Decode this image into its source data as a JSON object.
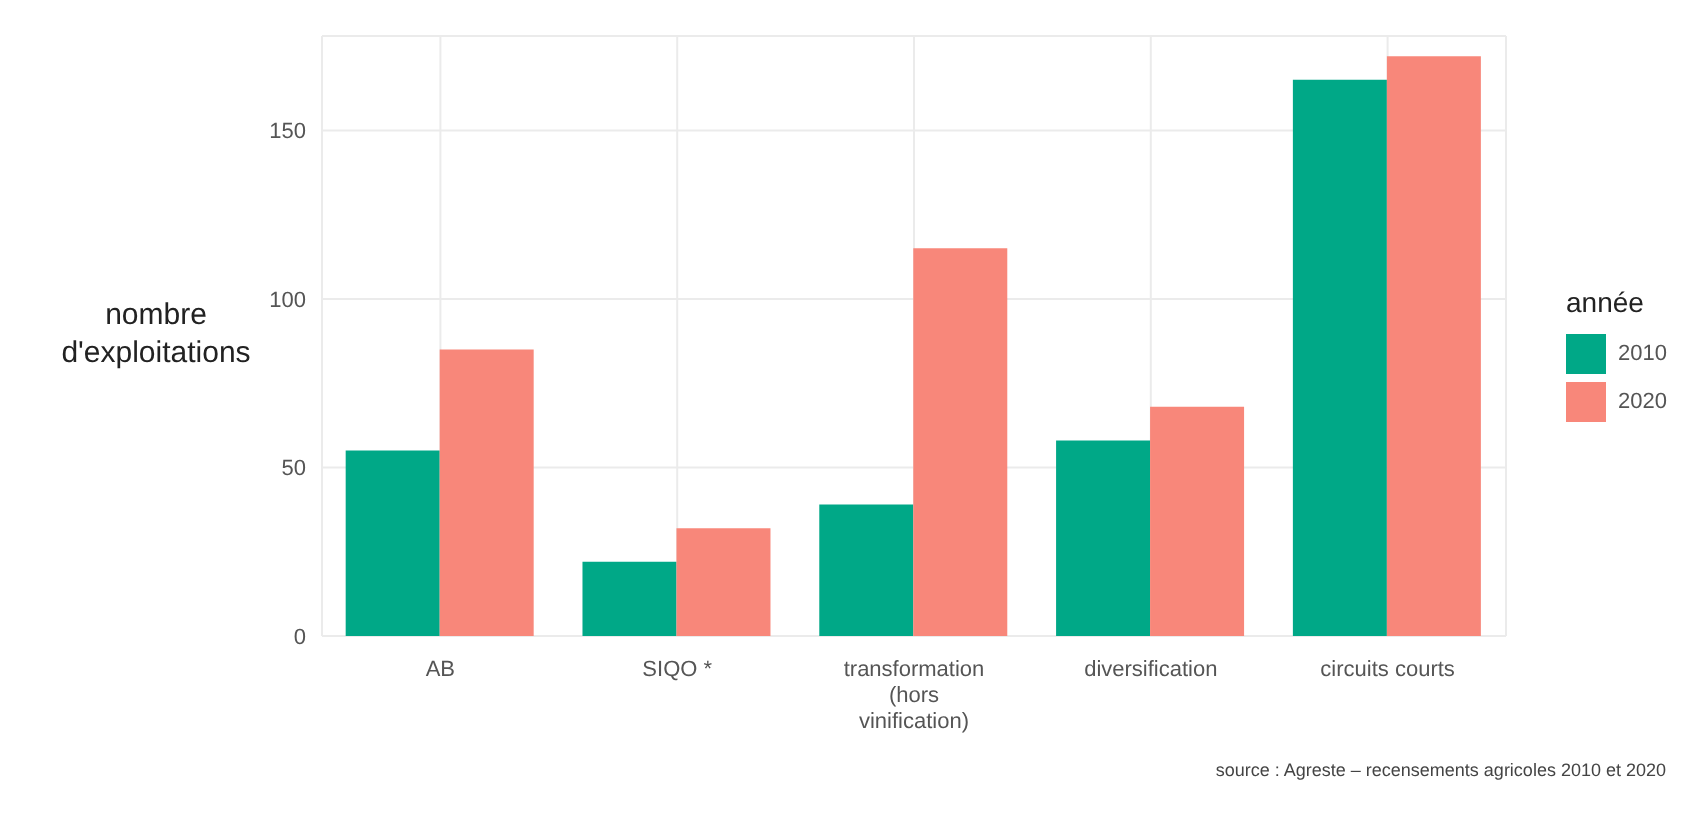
{
  "chart_data": {
    "type": "bar",
    "ylabel": "nombre\nd'exploitations",
    "legend_title": "année",
    "categories": [
      "AB",
      "SIQO *",
      "transformation (hors vinification)",
      "diversification",
      "circuits courts"
    ],
    "series": [
      {
        "name": "2010",
        "color": "#00a887",
        "values": [
          55,
          22,
          39,
          58,
          165
        ]
      },
      {
        "name": "2020",
        "color": "#f8877a",
        "values": [
          85,
          32,
          115,
          68,
          172
        ]
      }
    ],
    "ylim": [
      0,
      178
    ],
    "yticks": [
      0,
      50,
      100,
      150
    ],
    "grid": true,
    "legend": "right",
    "annotations": [
      "source : Agreste – recensements agricoles 2010 et 2020"
    ]
  }
}
